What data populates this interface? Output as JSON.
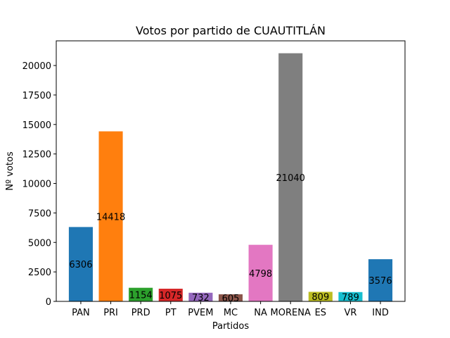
{
  "chart_data": {
    "type": "bar",
    "title": "Votos por partido de CUAUTITLÁN",
    "xlabel": "Partidos",
    "ylabel": "Nº votos",
    "categories": [
      "PAN",
      "PRI",
      "PRD",
      "PT",
      "PVEM",
      "MC",
      "NA",
      "MORENA",
      "ES",
      "VR",
      "IND"
    ],
    "values": [
      6306,
      14418,
      1154,
      1075,
      732,
      605,
      4798,
      21040,
      809,
      789,
      3576
    ],
    "value_labels": [
      "6306",
      "14418",
      "1154",
      "1075",
      "732",
      "605",
      "4798",
      "21040",
      "809",
      "789",
      "3576"
    ],
    "colors": [
      "#1f77b4",
      "#ff7f0e",
      "#2ca02c",
      "#d62728",
      "#9467bd",
      "#8c564b",
      "#e377c2",
      "#7f7f7f",
      "#bcbd22",
      "#17becf",
      "#1f77b4"
    ],
    "yticks": [
      0,
      2500,
      5000,
      7500,
      10000,
      12500,
      15000,
      17500,
      20000
    ],
    "ytick_labels": [
      "0",
      "2500",
      "5000",
      "7500",
      "10000",
      "12500",
      "15000",
      "17500",
      "20000"
    ],
    "ylim": [
      0,
      22092
    ],
    "grid": false,
    "legend": false
  }
}
